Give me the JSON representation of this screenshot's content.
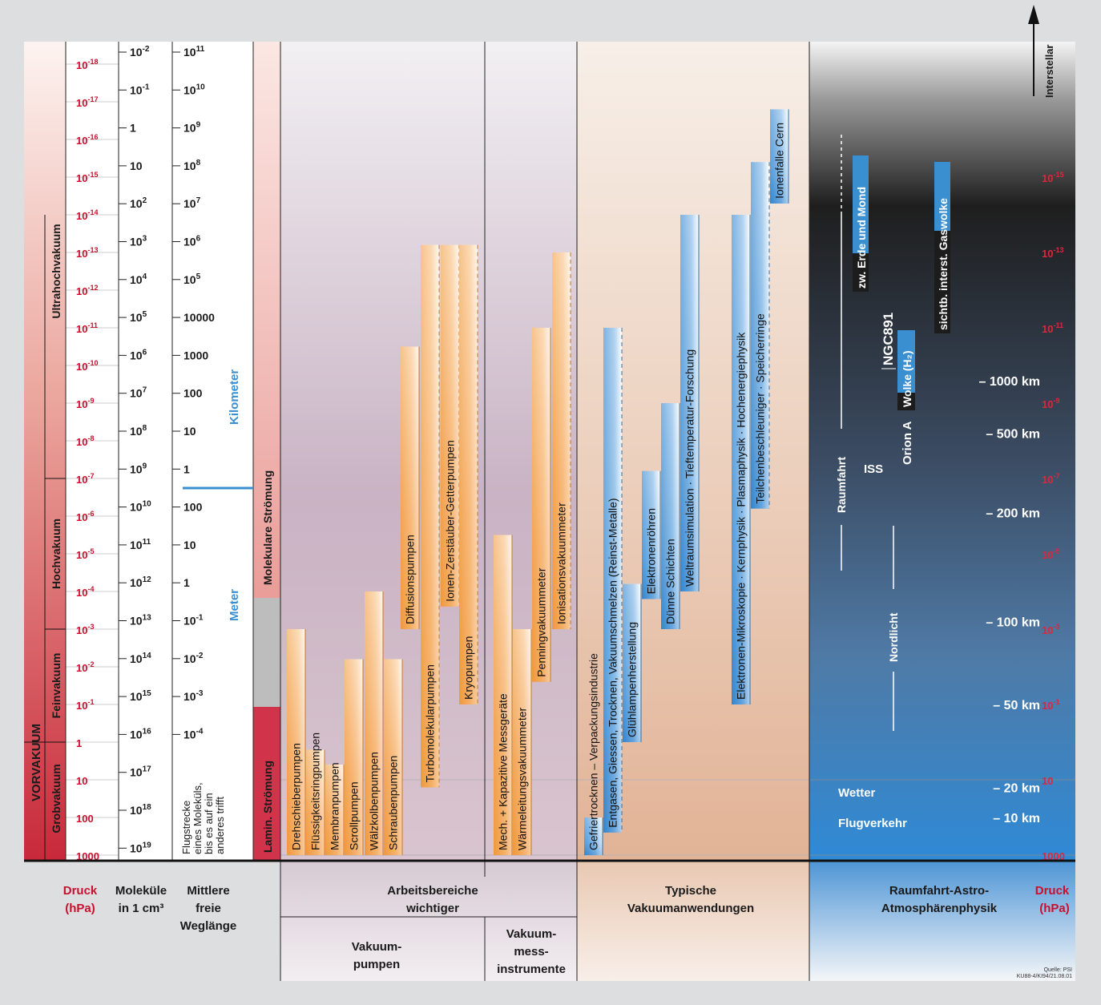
{
  "pressure_labels": [
    "10-18",
    "10-17",
    "10-16",
    "10-15",
    "10-14",
    "10-13",
    "10-12",
    "10-11",
    "10-10",
    "10-9",
    "10-8",
    "10-7",
    "10-6",
    "10-5",
    "10-4",
    "10-3",
    "10-2",
    "10-1",
    "1",
    "10",
    "100",
    "1000"
  ],
  "pressure_exponents": [
    -18,
    -17,
    -16,
    -15,
    -14,
    -13,
    -12,
    -11,
    -10,
    -9,
    -8,
    -7,
    -6,
    -5,
    -4,
    -3,
    -2,
    -1,
    0,
    1,
    2,
    3
  ],
  "molecules": [
    {
      "base": "10",
      "exp": "-2"
    },
    {
      "base": "10",
      "exp": "-1"
    },
    {
      "base": "1",
      "exp": ""
    },
    {
      "base": "10",
      "exp": ""
    },
    {
      "base": "10",
      "exp": "2"
    },
    {
      "base": "10",
      "exp": "3"
    },
    {
      "base": "10",
      "exp": "4"
    },
    {
      "base": "10",
      "exp": "5"
    },
    {
      "base": "10",
      "exp": "6"
    },
    {
      "base": "10",
      "exp": "7"
    },
    {
      "base": "10",
      "exp": "8"
    },
    {
      "base": "10",
      "exp": "9"
    },
    {
      "base": "10",
      "exp": "10"
    },
    {
      "base": "10",
      "exp": "11"
    },
    {
      "base": "10",
      "exp": "12"
    },
    {
      "base": "10",
      "exp": "13"
    },
    {
      "base": "10",
      "exp": "14"
    },
    {
      "base": "10",
      "exp": "15"
    },
    {
      "base": "10",
      "exp": "16"
    },
    {
      "base": "10",
      "exp": "17"
    },
    {
      "base": "10",
      "exp": "18"
    },
    {
      "base": "10",
      "exp": "19"
    }
  ],
  "free_path": [
    {
      "base": "10",
      "exp": "11"
    },
    {
      "base": "10",
      "exp": "10"
    },
    {
      "base": "10",
      "exp": "9"
    },
    {
      "base": "10",
      "exp": "8"
    },
    {
      "base": "10",
      "exp": "7"
    },
    {
      "base": "10",
      "exp": "6"
    },
    {
      "base": "10",
      "exp": "5"
    },
    {
      "base": "10000",
      "exp": ""
    },
    {
      "base": "1000",
      "exp": ""
    },
    {
      "base": "100",
      "exp": ""
    },
    {
      "base": "10",
      "exp": ""
    },
    {
      "base": "1",
      "exp": ""
    },
    {
      "base": "100",
      "exp": ""
    },
    {
      "base": "10",
      "exp": ""
    },
    {
      "base": "1",
      "exp": ""
    },
    {
      "base": "10",
      "exp": "-1"
    },
    {
      "base": "10",
      "exp": "-2"
    },
    {
      "base": "10",
      "exp": "-3"
    },
    {
      "base": "10",
      "exp": "-4"
    }
  ],
  "vacuum_ranges": [
    {
      "label": "Ultrahochvakuum",
      "from": -18,
      "to": -7
    },
    {
      "label": "Hochvakuum",
      "from": -7,
      "to": -3
    },
    {
      "label": "Feinvakuum",
      "from": -3,
      "to": 0
    },
    {
      "label": "Grobvakuum",
      "from": 0,
      "to": 3
    }
  ],
  "texts": {
    "vorvakuum": "VORVAKUUM",
    "kilometer": "Kilometer",
    "meter": "Meter",
    "free_path_note": [
      "Flugstrecke",
      "eines Moleküls,",
      "bis es auf ein",
      "anderes trifft"
    ],
    "molekulare": "Molekulare Strömung",
    "lamin": "Lamin. Strömung",
    "interstellar": "Interstellar",
    "quelle": "Quelle: PSI",
    "code": "KU88-4/KI94/21.08.01"
  },
  "footer": {
    "druck": [
      "Druck",
      "(hPa)"
    ],
    "molekuele": [
      "Moleküle",
      "in 1 cm³"
    ],
    "weglaenge": [
      "Mittlere",
      "freie",
      "Weglänge"
    ],
    "arbeitsbereiche": [
      "Arbeitsbereiche",
      "wichtiger"
    ],
    "pumpen": [
      "Vakuum-",
      "pumpen"
    ],
    "messinstrumente": [
      "Vakuum-",
      "mess-",
      "instrumente"
    ],
    "anwendungen": [
      "Typische",
      "Vakuumanwendungen"
    ],
    "raumfahrt": [
      "Raumfahrt-Astro-",
      "Atmosphärenphysik"
    ],
    "druck_right": [
      "Druck",
      "(hPa)"
    ]
  },
  "pumps": [
    {
      "label": "Drehschieberpumpen",
      "from": 3,
      "to": -3,
      "top": "solid"
    },
    {
      "label": "Flüssigkeitsringpumpen",
      "from": 3,
      "to": 0.2,
      "top": "solid"
    },
    {
      "label": "Membranpumpen",
      "from": 3,
      "to": 0.6,
      "top": "solid"
    },
    {
      "label": "Scrollpumpen",
      "from": 3,
      "to": -2.2,
      "top": "solid"
    },
    {
      "label": "Wälzkolbenpumpen",
      "from": 3,
      "to": -4,
      "top": "solid"
    },
    {
      "label": "Schraubenpumpen",
      "from": 3,
      "to": -2.2,
      "top": "solid"
    },
    {
      "label": "Diffusionspumpen",
      "from": -3,
      "to": -10.5,
      "top": "solid"
    },
    {
      "label": "Turbomolekularpumpen",
      "from": 1.2,
      "to": -13.2,
      "top": "dashed"
    },
    {
      "label": "Ionen-Zerstäuber-Getterpumpen",
      "from": -3.6,
      "to": -13.2,
      "top": "dashed"
    },
    {
      "label": "Kryopumpen",
      "from": -1,
      "to": -13.2,
      "top": "dashed"
    }
  ],
  "instruments": [
    {
      "label": "Mech. + Kapazitive Messgeräte",
      "from": 3,
      "to": -5.5,
      "top": "solid"
    },
    {
      "label": "Wärmeleitungsvakuummeter",
      "from": 3,
      "to": -3,
      "top": "solid"
    },
    {
      "label": "Penningvakuummeter",
      "from": -1.6,
      "to": -11,
      "top": "solid"
    },
    {
      "label": "Ionisationsvakuummeter",
      "from": -3,
      "to": -13,
      "top": "dashed"
    }
  ],
  "applications": [
    {
      "label": "Gefriertrocknen – Verpackungsindustrie",
      "from": 3,
      "to": 2
    },
    {
      "label": "Entgasen, Giessen, Trocknen, Vakuumschmelzen (Reinst-Metalle)",
      "from": 2.4,
      "to": -11
    },
    {
      "label": "Glühlampenherstellung",
      "from": 0,
      "to": -4.2
    },
    {
      "label": "Elektronenröhren",
      "from": -3.8,
      "to": -7.2
    },
    {
      "label": "Dünne Schichten",
      "from": -3,
      "to": -9
    },
    {
      "label": "Weltraumsimulation · Tieftemperatur-Forschung",
      "from": -4,
      "to": -14
    },
    {
      "label": "Elektronen-Mikroskopie · Kernphysik · Plasmaphysik · Hochenergiephysik",
      "from": -1,
      "to": -14
    },
    {
      "label": "Teilchenbeschleuniger · Speicherringe",
      "from": -6.2,
      "to": -15.4
    },
    {
      "label": "Ionenfalle Cern",
      "from": -14.3,
      "to": -16.8
    }
  ],
  "space_labels": {
    "zw_erde": "zw. Erde und Mond",
    "gaswolke": "sichtb. interst. Gaswolke",
    "ngc": "NGC891",
    "orion": "Orion A",
    "wolke": "Wolke (H₂)",
    "iss": "ISS",
    "raumfahrt": "Raumfahrt",
    "nordlicht": "Nordlicht",
    "wetter": "Wetter",
    "flugverkehr": "Flugverkehr"
  },
  "altitudes": [
    {
      "label": "– 1000 km",
      "at": -9.6
    },
    {
      "label": "– 500 km",
      "at": -8.2
    },
    {
      "label": "– 200 km",
      "at": -6.1
    },
    {
      "label": "– 100 km",
      "at": -3.2
    },
    {
      "label": "– 50 km",
      "at": -1
    },
    {
      "label": "– 20 km",
      "at": 1.2
    },
    {
      "label": "– 10 km",
      "at": 2
    }
  ],
  "right_pressures": [
    {
      "base": "10",
      "exp": "-15",
      "at": -15
    },
    {
      "base": "10",
      "exp": "-13",
      "at": -13
    },
    {
      "base": "10",
      "exp": "-11",
      "at": -11
    },
    {
      "base": "10",
      "exp": "-9",
      "at": -9
    },
    {
      "base": "10",
      "exp": "-7",
      "at": -7
    },
    {
      "base": "10",
      "exp": "-5",
      "at": -5
    },
    {
      "base": "10",
      "exp": "-3",
      "at": -3
    },
    {
      "base": "10",
      "exp": "-1",
      "at": -1
    },
    {
      "base": "10",
      "exp": "",
      "at": 1
    },
    {
      "base": "1000",
      "exp": "",
      "at": 3
    }
  ]
}
